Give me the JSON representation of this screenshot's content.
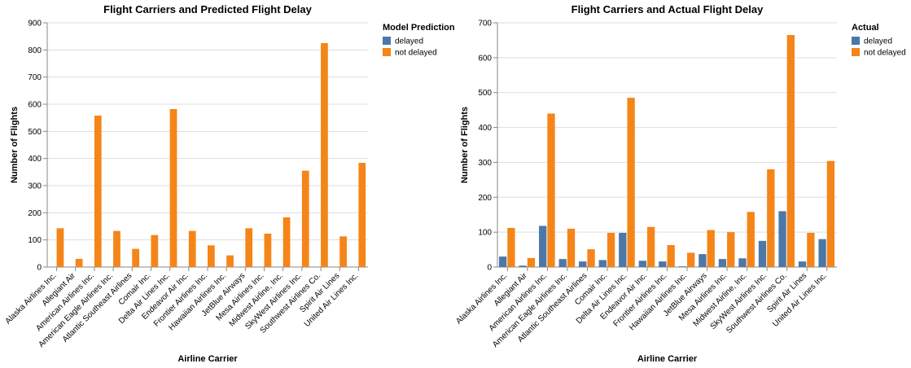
{
  "chart_data": [
    {
      "type": "bar",
      "title": "Flight Carriers and Predicted Flight Delay",
      "xlabel": "Airline Carrier",
      "ylabel": "Number of Flights",
      "ylim": [
        0,
        900
      ],
      "yticks": [
        0,
        100,
        200,
        300,
        400,
        500,
        600,
        700,
        800,
        900
      ],
      "legend": {
        "title": "Model Prediction",
        "placement": "top-right"
      },
      "grid": true,
      "categories": [
        "Alaska Airlines Inc.",
        "Allegiant Air",
        "American Airlines Inc.",
        "American Eagle Airlines Inc.",
        "Atlantic Southeast Airlines",
        "Comair Inc.",
        "Delta Air Lines Inc.",
        "Endeavor Air Inc.",
        "Frontier Airlines Inc.",
        "Hawaiian Airlines Inc.",
        "JetBlue Airways",
        "Mesa Airlines Inc.",
        "Midwest Airline, Inc.",
        "SkyWest Airlines Inc.",
        "Southwest Airlines Co.",
        "Spirit Air Lines",
        "United Air Lines Inc."
      ],
      "series": [
        {
          "name": "delayed",
          "color": "#4c78a8",
          "values": [
            0,
            0,
            0,
            0,
            0,
            0,
            0,
            0,
            0,
            0,
            0,
            0,
            0,
            0,
            0,
            0,
            0
          ]
        },
        {
          "name": "not delayed",
          "color": "#f58518",
          "values": [
            143,
            30,
            558,
            133,
            67,
            118,
            582,
            133,
            80,
            43,
            143,
            123,
            183,
            355,
            825,
            113,
            384
          ]
        }
      ]
    },
    {
      "type": "bar",
      "title": "Flight Carriers and Actual Flight Delay",
      "xlabel": "Airline Carrier",
      "ylabel": "Number of Flights",
      "ylim": [
        0,
        700
      ],
      "yticks": [
        0,
        100,
        200,
        300,
        400,
        500,
        600,
        700
      ],
      "legend": {
        "title": "Actual",
        "placement": "top-right"
      },
      "grid": true,
      "categories": [
        "Alaska Airlines Inc.",
        "Allegiant Air",
        "American Airlines Inc.",
        "American Eagle Airlines Inc.",
        "Atlantic Southeast Airlines",
        "Comair Inc.",
        "Delta Air Lines Inc.",
        "Endeavor Air Inc.",
        "Frontier Airlines Inc.",
        "Hawaiian Airlines Inc.",
        "JetBlue Airways",
        "Mesa Airlines Inc.",
        "Midwest Airline, Inc.",
        "SkyWest Airlines Inc.",
        "Southwest Airlines Co.",
        "Spirit Air Lines",
        "United Air Lines Inc."
      ],
      "series": [
        {
          "name": "delayed",
          "color": "#4c78a8",
          "values": [
            30,
            4,
            118,
            23,
            16,
            20,
            98,
            18,
            16,
            2,
            37,
            23,
            25,
            75,
            160,
            16,
            80
          ]
        },
        {
          "name": "not delayed",
          "color": "#f58518",
          "values": [
            112,
            26,
            440,
            110,
            51,
            98,
            485,
            115,
            63,
            41,
            106,
            100,
            158,
            280,
            665,
            98,
            304
          ]
        }
      ]
    }
  ]
}
